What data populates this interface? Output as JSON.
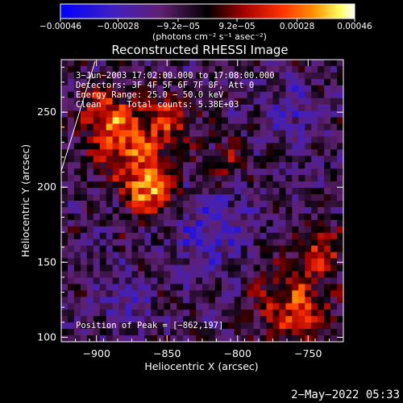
{
  "chart_data": {
    "type": "heatmap",
    "title": "Reconstructed RHESSI Image",
    "xlabel": "Heliocentric X (arcsec)",
    "ylabel": "Heliocentric Y (arcsec)",
    "xlim": [
      -925,
      -725
    ],
    "ylim": [
      97,
      285
    ],
    "x_ticks": [
      -900,
      -850,
      -800,
      -750
    ],
    "y_ticks": [
      100,
      150,
      200,
      250
    ],
    "x_tick_labels": [
      "−900",
      "−850",
      "−800",
      "−750"
    ],
    "y_tick_labels": [
      "100",
      "150",
      "200",
      "250"
    ],
    "colorbar": {
      "range": [
        -0.00046,
        0.00046
      ],
      "ticks": [
        -0.00046,
        -0.00028,
        -9.2e-05,
        9.2e-05,
        0.00028,
        0.00046
      ],
      "tick_labels": [
        "−0.00046",
        "−0.00028",
        "−9.2e−05",
        "9.2e−05",
        "0.00028",
        "0.00046"
      ],
      "units_label": "(photons cm⁻² s⁻¹ asec⁻²)",
      "colors": [
        "#0000ff",
        "#7030a0",
        "#000000",
        "#c00000",
        "#ff8000",
        "#ffff80",
        "#ffffff"
      ]
    },
    "annotations": [
      "3−Jun−2003 17:02:00.000 to 17:08:00.000",
      "Detectors: 3F 4F 5F 6F 7F 8F, Att 0",
      "Energy Range: 25.0 − 50.0 keV",
      "Clean     Total counts: 5.38E+03"
    ],
    "peak_label": "Position of Peak = [−862,197]",
    "peak": [
      -862,
      197
    ],
    "bright_regions": [
      {
        "x": -862,
        "y": 200,
        "sigma": 18,
        "value": 0.00042
      },
      {
        "x": -880,
        "y": 230,
        "sigma": 22,
        "value": 0.00032
      },
      {
        "x": -895,
        "y": 250,
        "sigma": 15,
        "value": 0.00026
      },
      {
        "x": -850,
        "y": 245,
        "sigma": 18,
        "value": 0.00024
      },
      {
        "x": -760,
        "y": 120,
        "sigma": 25,
        "value": 0.0003
      },
      {
        "x": -740,
        "y": 160,
        "sigma": 15,
        "value": 0.00024
      },
      {
        "x": -810,
        "y": 215,
        "sigma": 14,
        "value": 0.00018
      }
    ],
    "dark_regions": [
      {
        "x": -820,
        "y": 175,
        "sigma": 28,
        "value": -0.00018
      },
      {
        "x": -760,
        "y": 250,
        "sigma": 20,
        "value": -0.00016
      },
      {
        "x": -880,
        "y": 125,
        "sigma": 18,
        "value": -0.00014
      }
    ]
  },
  "footer_timestamp": "2−May−2022 05:33"
}
